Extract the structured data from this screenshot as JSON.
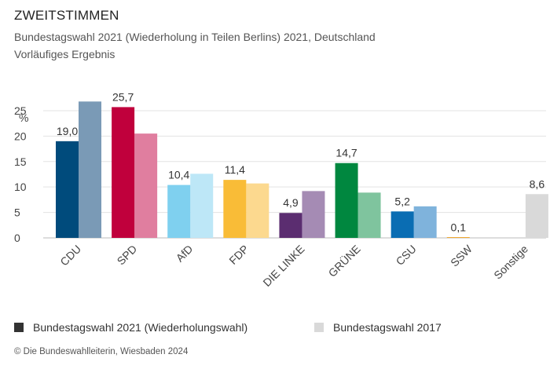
{
  "header": {
    "title": "ZWEITSTIMMEN",
    "subtitle": "Bundestagswahl 2021 (Wiederholung in Teilen Berlins) 2021, Deutschland",
    "note": "Vorläufiges Ergebnis"
  },
  "legend": {
    "series_2021": "Bundestagswahl 2021 (Wiederholungswahl)",
    "series_2017": "Bundestagswahl 2017",
    "color_2021": "#333333",
    "color_2017": "#d9d9d9"
  },
  "source": "© Die Bundeswahlleiterin, Wiesbaden 2024",
  "chart_data": {
    "type": "bar",
    "ylabel": "%",
    "ylim": [
      0,
      27
    ],
    "yticks": [
      0,
      5,
      10,
      15,
      20,
      25
    ],
    "categories": [
      "CDU",
      "SPD",
      "AfD",
      "FDP",
      "DIE LINKE",
      "GRÜNE",
      "CSU",
      "SSW",
      "Sonstige"
    ],
    "series": [
      {
        "name": "Bundestagswahl 2021 (Wiederholungswahl)",
        "values": [
          19.0,
          25.7,
          10.4,
          11.4,
          4.9,
          14.7,
          5.2,
          0.1,
          null
        ],
        "labels": [
          "19,0",
          "25,7",
          "10,4",
          "11,4",
          "4,9",
          "14,7",
          "5,2",
          "0,1",
          ""
        ],
        "colors": [
          "#004b7c",
          "#c0003c",
          "#7fd0ef",
          "#f9bc37",
          "#5b2d70",
          "#00873f",
          "#0a6db3",
          "#f0a830",
          "#cccccc"
        ]
      },
      {
        "name": "Bundestagswahl 2017",
        "values": [
          26.8,
          20.5,
          12.6,
          10.7,
          9.2,
          8.9,
          6.2,
          null,
          8.6
        ],
        "labels": [
          "",
          "",
          "",
          "",
          "",
          "",
          "",
          "",
          "8,6"
        ],
        "colors": [
          "#7a9ab6",
          "#e07e9f",
          "#bde7f7",
          "#fcd98f",
          "#a58bb4",
          "#7fc49e",
          "#7fb3dc",
          "#f7d391",
          "#d9d9d9"
        ]
      }
    ],
    "grid": true,
    "legend_position": "bottom"
  }
}
